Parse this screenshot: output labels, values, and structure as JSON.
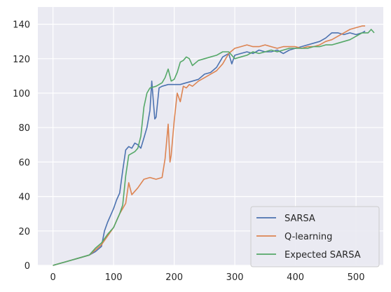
{
  "chart_data": {
    "type": "line",
    "title": "",
    "xlabel": "",
    "ylabel": "",
    "xlim": [
      -25,
      545
    ],
    "ylim": [
      0,
      150
    ],
    "xticks": [
      0,
      100,
      200,
      300,
      400,
      500
    ],
    "yticks": [
      0,
      20,
      40,
      60,
      80,
      100,
      120,
      140
    ],
    "grid": true,
    "legend_position": "lower right",
    "background": "#eaeaf2",
    "series": [
      {
        "name": "SARSA",
        "color": "#4c72b0",
        "x": [
          0,
          10,
          20,
          30,
          40,
          50,
          60,
          70,
          80,
          85,
          90,
          95,
          100,
          105,
          110,
          115,
          120,
          125,
          130,
          135,
          140,
          145,
          150,
          155,
          160,
          163,
          165,
          168,
          170,
          175,
          180,
          190,
          200,
          210,
          220,
          230,
          240,
          250,
          260,
          270,
          280,
          290,
          295,
          300,
          310,
          320,
          330,
          340,
          350,
          360,
          370,
          380,
          390,
          400,
          410,
          420,
          430,
          440,
          450,
          460,
          470,
          480,
          490,
          500,
          510,
          515
        ],
        "y": [
          0,
          1,
          2,
          3,
          4,
          5,
          6,
          8,
          11,
          20,
          25,
          29,
          33,
          38,
          42,
          55,
          67,
          69,
          68,
          71,
          70,
          68,
          74,
          80,
          90,
          107,
          98,
          85,
          86,
          103,
          104,
          105,
          105,
          105,
          106,
          107,
          108,
          111,
          112,
          115,
          121,
          123,
          117,
          122,
          123,
          124,
          123,
          125,
          124,
          124,
          125,
          123,
          125,
          126,
          127,
          128,
          129,
          130,
          132,
          135,
          135,
          134,
          135,
          134,
          135,
          136
        ]
      },
      {
        "name": "Q-learning",
        "color": "#dd8452",
        "x": [
          0,
          10,
          20,
          30,
          40,
          50,
          60,
          70,
          80,
          90,
          100,
          105,
          110,
          115,
          120,
          125,
          130,
          135,
          140,
          150,
          160,
          170,
          180,
          185,
          190,
          193,
          195,
          200,
          205,
          210,
          215,
          220,
          225,
          230,
          240,
          250,
          260,
          270,
          280,
          290,
          300,
          310,
          320,
          330,
          340,
          350,
          360,
          370,
          380,
          390,
          400,
          410,
          420,
          430,
          440,
          450,
          460,
          470,
          480,
          490,
          500,
          510,
          515
        ],
        "y": [
          0,
          1,
          2,
          3,
          4,
          5,
          6,
          9,
          12,
          17,
          22,
          26,
          30,
          33,
          36,
          48,
          41,
          43,
          45,
          50,
          51,
          50,
          51,
          62,
          82,
          60,
          64,
          84,
          100,
          95,
          104,
          103,
          105,
          104,
          107,
          109,
          111,
          113,
          117,
          123,
          126,
          127,
          128,
          127,
          127,
          128,
          127,
          126,
          127,
          127,
          127,
          126,
          127,
          127,
          128,
          130,
          131,
          133,
          135,
          137,
          138,
          139,
          139
        ]
      },
      {
        "name": "Expected SARSA",
        "color": "#55a868",
        "x": [
          0,
          10,
          20,
          30,
          40,
          50,
          60,
          70,
          80,
          90,
          100,
          110,
          115,
          120,
          125,
          130,
          135,
          140,
          145,
          150,
          155,
          160,
          170,
          180,
          185,
          190,
          195,
          200,
          205,
          210,
          215,
          220,
          225,
          230,
          240,
          250,
          260,
          270,
          280,
          290,
          300,
          310,
          320,
          330,
          340,
          350,
          360,
          370,
          380,
          390,
          400,
          410,
          420,
          430,
          440,
          450,
          460,
          470,
          480,
          490,
          500,
          510,
          520,
          525,
          530
        ],
        "y": [
          0,
          1,
          2,
          3,
          4,
          5,
          6,
          10,
          13,
          18,
          22,
          30,
          35,
          52,
          64,
          65,
          66,
          68,
          75,
          92,
          100,
          103,
          104,
          106,
          109,
          114,
          107,
          108,
          112,
          118,
          119,
          121,
          120,
          116,
          119,
          120,
          121,
          122,
          124,
          124,
          120,
          121,
          122,
          124,
          123,
          124,
          125,
          124,
          125,
          126,
          126,
          126,
          126,
          127,
          127,
          128,
          128,
          129,
          130,
          131,
          133,
          135,
          135,
          137,
          135
        ]
      }
    ]
  }
}
